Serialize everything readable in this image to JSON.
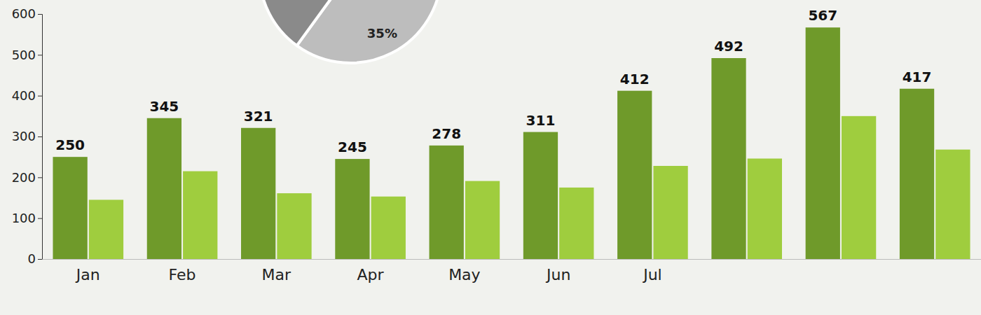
{
  "chart_data": [
    {
      "type": "bar",
      "categories": [
        "Jan",
        "Feb",
        "Mar",
        "Apr",
        "May",
        "Jun",
        "Jul",
        null,
        null,
        null
      ],
      "series": [
        {
          "color": "#6f9a2a",
          "values": [
            250,
            345,
            321,
            245,
            278,
            311,
            412,
            492,
            567,
            417
          ],
          "data_labels": true
        },
        {
          "color": "#9fcd3e",
          "values": [
            145,
            215,
            161,
            153,
            191,
            175,
            228,
            246,
            350,
            268
          ]
        }
      ],
      "ylim": [
        0,
        600
      ],
      "yticks": [
        0,
        100,
        200,
        300,
        400,
        500,
        600
      ],
      "grid": false
    },
    {
      "type": "pie",
      "values": [
        35,
        65
      ],
      "value_labels": [
        "35%",
        null
      ],
      "colors": [
        "#bdbdbd",
        "#8a8a8a"
      ]
    }
  ]
}
